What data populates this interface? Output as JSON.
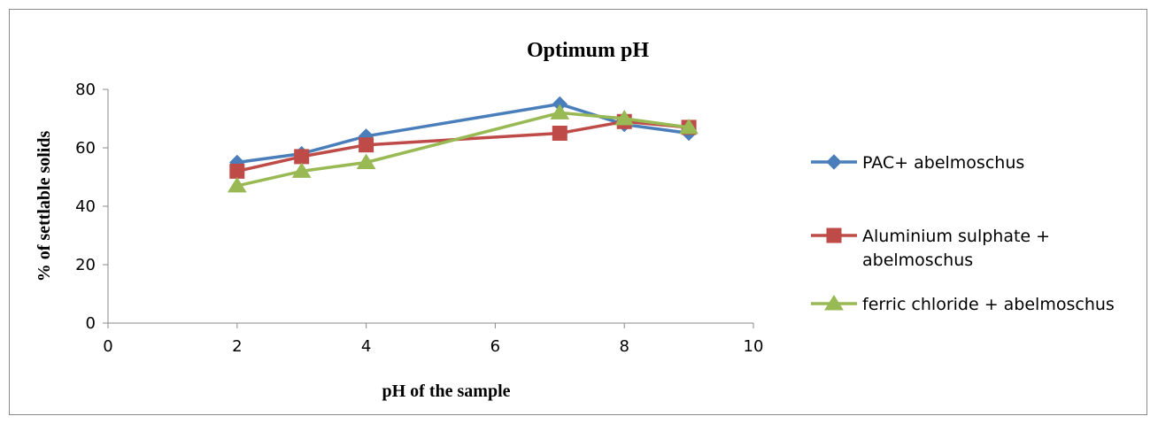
{
  "chart_data": {
    "type": "line",
    "title": "Optimum pH",
    "xlabel": "pH of the sample",
    "ylabel": "% of settlable solids",
    "xlim": [
      0,
      10
    ],
    "ylim": [
      0,
      80
    ],
    "xticks": [
      0,
      2,
      4,
      6,
      8,
      10
    ],
    "yticks": [
      0,
      20,
      40,
      60,
      80
    ],
    "grid": false,
    "legend_position": "right",
    "series": [
      {
        "name": "PAC+ abelmoschus",
        "name_lines": [
          "PAC+ abelmoschus"
        ],
        "color": "#4a7ebb",
        "marker": "diamond",
        "points": [
          [
            2,
            55
          ],
          [
            3,
            58
          ],
          [
            4,
            64
          ],
          [
            7,
            75
          ],
          [
            8,
            68
          ],
          [
            9,
            65
          ]
        ]
      },
      {
        "name": "Aluminium sulphate + abelmoschus",
        "name_lines": [
          "Aluminium sulphate +",
          "abelmoschus"
        ],
        "color": "#be4b48",
        "marker": "square",
        "points": [
          [
            2,
            52
          ],
          [
            3,
            57
          ],
          [
            4,
            61
          ],
          [
            7,
            65
          ],
          [
            8,
            69
          ],
          [
            9,
            67
          ]
        ]
      },
      {
        "name": "ferric chloride + abelmoschus",
        "name_lines": [
          "ferric chloride + abelmoschus"
        ],
        "color": "#98b954",
        "marker": "triangle",
        "points": [
          [
            2,
            47
          ],
          [
            3,
            52
          ],
          [
            4,
            55
          ],
          [
            7,
            72
          ],
          [
            8,
            70
          ],
          [
            9,
            67
          ]
        ]
      }
    ]
  }
}
